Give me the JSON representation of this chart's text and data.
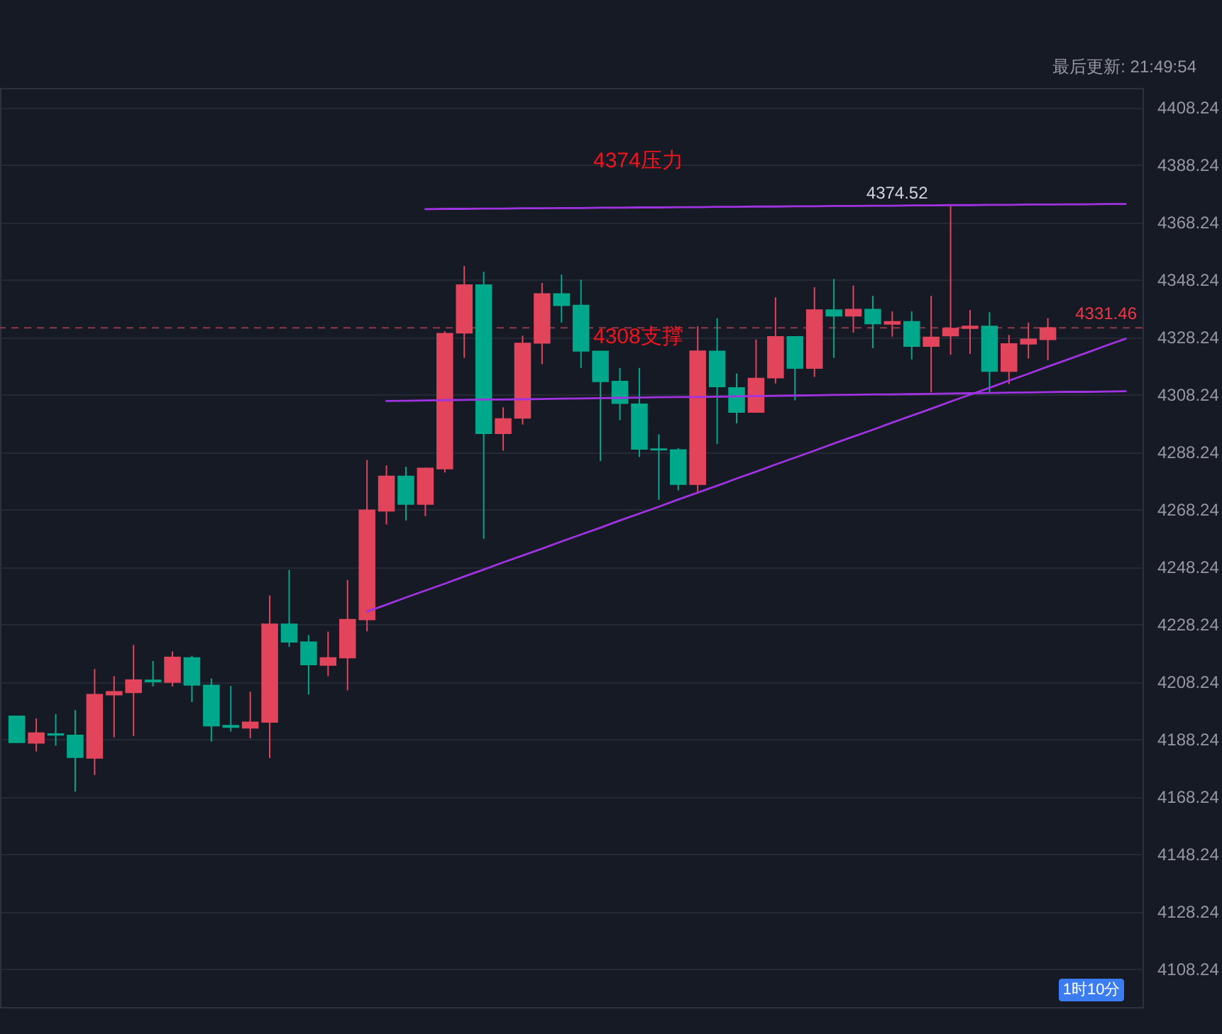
{
  "chart_data": {
    "type": "candlestick",
    "categories": [
      null,
      null,
      null,
      null,
      null,
      null,
      null,
      null,
      null,
      null,
      null,
      null,
      null,
      null,
      null,
      null,
      null,
      null,
      null,
      null,
      null,
      null,
      null,
      null,
      null,
      null,
      null,
      null,
      null,
      null,
      null,
      null,
      null,
      null,
      null,
      null,
      null,
      null,
      null,
      null,
      null,
      null,
      null,
      null,
      null,
      null,
      null,
      null,
      null,
      null,
      null,
      null,
      null,
      null,
      null,
      null,
      null,
      null
    ],
    "ohlc": [
      [
        4196.3,
        4196.3,
        4187.1,
        4187.1
      ],
      [
        4186.9,
        4195.5,
        4184.0,
        4190.4
      ],
      [
        4190.1,
        4197.0,
        4186.0,
        4189.7
      ],
      [
        4189.6,
        4198.4,
        4170.0,
        4181.9
      ],
      [
        4181.7,
        4212.7,
        4175.8,
        4203.8
      ],
      [
        4203.7,
        4210.2,
        4188.9,
        4204.8
      ],
      [
        4204.5,
        4221.1,
        4189.4,
        4208.9
      ],
      [
        4208.8,
        4215.5,
        4206.6,
        4208.3
      ],
      [
        4208.1,
        4218.8,
        4206.6,
        4216.8
      ],
      [
        4216.6,
        4217.3,
        4201.2,
        4207.1
      ],
      [
        4207.0,
        4209.4,
        4187.4,
        4192.9
      ],
      [
        4193.0,
        4206.8,
        4190.9,
        4192.4
      ],
      [
        4192.2,
        4204.8,
        4188.6,
        4194.2
      ],
      [
        4194.2,
        4238.3,
        4181.7,
        4228.3
      ],
      [
        4228.3,
        4247.2,
        4220.4,
        4222.1
      ],
      [
        4222.1,
        4224.5,
        4203.8,
        4214.2
      ],
      [
        4214.0,
        4225.7,
        4210.2,
        4216.6
      ],
      [
        4216.6,
        4243.7,
        4205.3,
        4229.9
      ],
      [
        4229.9,
        4285.5,
        4225.8,
        4268.0
      ],
      [
        4267.7,
        4283.6,
        4263.0,
        4279.8
      ],
      [
        4279.8,
        4283.1,
        4264.4,
        4270.1
      ],
      [
        4270.1,
        4282.8,
        4265.9,
        4282.6
      ],
      [
        4282.4,
        4330.3,
        4281.1,
        4329.5
      ],
      [
        4329.7,
        4353.0,
        4321.0,
        4346.4
      ],
      [
        4346.4,
        4351.0,
        4258.0,
        4294.7
      ],
      [
        4294.7,
        4303.8,
        4288.7,
        4299.8
      ],
      [
        4300.1,
        4328.7,
        4297.8,
        4326.1
      ],
      [
        4326.2,
        4347.1,
        4318.8,
        4343.3
      ],
      [
        4343.3,
        4350.0,
        4333.3,
        4339.3
      ],
      [
        4339.3,
        4348.2,
        4317.5,
        4323.4
      ],
      [
        4323.3,
        4323.3,
        4285.1,
        4312.8
      ],
      [
        4312.8,
        4317.5,
        4299.3,
        4305.2
      ],
      [
        4304.9,
        4317.5,
        4286.5,
        4289.3
      ],
      [
        4289.3,
        4294.4,
        4271.6,
        4289.0
      ],
      [
        4289.0,
        4289.6,
        4274.9,
        4277.0
      ],
      [
        4277.0,
        4332.0,
        4273.7,
        4323.4
      ],
      [
        4323.3,
        4334.8,
        4291.0,
        4311.0
      ],
      [
        4310.6,
        4315.6,
        4298.2,
        4302.1
      ],
      [
        4302.1,
        4327.4,
        4302.1,
        4313.9
      ],
      [
        4314.1,
        4342.1,
        4312.1,
        4328.4
      ],
      [
        4328.4,
        4328.4,
        4306.2,
        4317.4
      ],
      [
        4317.4,
        4345.6,
        4314.4,
        4337.7
      ],
      [
        4337.7,
        4348.5,
        4321.0,
        4335.6
      ],
      [
        4335.6,
        4346.2,
        4329.8,
        4337.9
      ],
      [
        4337.9,
        4342.6,
        4324.4,
        4332.9
      ],
      [
        4332.8,
        4337.2,
        4328.4,
        4333.6
      ],
      [
        4333.6,
        4337.2,
        4320.5,
        4325.1
      ],
      [
        4325.1,
        4342.6,
        4309.0,
        4328.2
      ],
      [
        4328.7,
        4374.52,
        4322.1,
        4331.3
      ],
      [
        4331.3,
        4337.7,
        4322.4,
        4332.0
      ],
      [
        4332.0,
        4336.9,
        4309.0,
        4316.4
      ],
      [
        4316.4,
        4329.0,
        4311.9,
        4325.9
      ],
      [
        4325.9,
        4333.3,
        4320.8,
        4327.5
      ],
      [
        4327.4,
        4334.8,
        4320.2,
        4331.46
      ],
      null,
      null,
      null,
      null
    ],
    "colors": [
      "#00a88b",
      "#e2445c",
      "#00a88b",
      "#00a88b",
      "#e2445c",
      "#e2445c",
      "#e2445c",
      "#00a88b",
      "#e2445c",
      "#00a88b",
      "#00a88b",
      "#00a88b",
      "#e2445c",
      "#e2445c",
      "#00a88b",
      "#00a88b",
      "#e2445c",
      "#e2445c",
      "#e2445c",
      "#e2445c",
      "#00a88b",
      "#e2445c",
      "#e2445c",
      "#e2445c",
      "#00a88b",
      "#e2445c",
      "#e2445c",
      "#e2445c",
      "#00a88b",
      "#00a88b",
      "#00a88b",
      "#00a88b",
      "#00a88b",
      "#00a88b",
      "#00a88b",
      "#e2445c",
      "#00a88b",
      "#00a88b",
      "#e2445c",
      "#e2445c",
      "#00a88b",
      "#e2445c",
      "#00a88b",
      "#e2445c",
      "#00a88b",
      "#e2445c",
      "#00a88b",
      "#e2445c",
      "#e2445c",
      "#e2445c",
      "#00a88b",
      "#e2445c",
      "#e2445c",
      "#e2445c",
      null,
      null,
      null,
      null
    ],
    "series": [
      {
        "type": "line",
        "color": "#a033e0",
        "values": [
          null,
          null,
          null,
          null,
          null,
          null,
          null,
          null,
          null,
          null,
          null,
          null,
          null,
          null,
          null,
          null,
          null,
          null,
          null,
          null,
          null,
          4372.8,
          4372.9,
          4372.9,
          4373.0,
          4373.0,
          4373.1,
          4373.1,
          4373.2,
          4373.2,
          4373.3,
          4373.3,
          4373.4,
          4373.4,
          4373.5,
          4373.5,
          4373.6,
          4373.6,
          4373.7,
          4373.7,
          4373.8,
          4373.8,
          4373.9,
          4373.9,
          4374.0,
          4374.0,
          4374.1,
          4374.1,
          4374.2,
          4374.2,
          4374.3,
          4374.3,
          4374.4,
          4374.4,
          4374.5,
          4374.5,
          4374.6,
          4374.6
        ]
      },
      {
        "type": "line",
        "color": "#a033e0",
        "values": [
          null,
          null,
          null,
          null,
          null,
          null,
          null,
          null,
          null,
          null,
          null,
          null,
          null,
          null,
          null,
          null,
          null,
          null,
          null,
          4306.0,
          4306.1,
          4306.2,
          4306.3,
          4306.4,
          4306.5,
          4306.5,
          4306.6,
          4306.7,
          4306.8,
          4306.9,
          4307.0,
          4307.1,
          4307.2,
          4307.3,
          4307.4,
          4307.4,
          4307.5,
          4307.6,
          4307.7,
          4307.8,
          4307.9,
          4308.0,
          4308.1,
          4308.2,
          4308.3,
          4308.3,
          4308.4,
          4308.5,
          4308.6,
          4308.7,
          4308.8,
          4308.9,
          4309.0,
          4309.1,
          4309.2,
          4309.2,
          4309.3,
          4309.4
        ]
      },
      {
        "type": "line",
        "color": "#a033e0",
        "values": [
          null,
          null,
          null,
          null,
          null,
          null,
          null,
          null,
          null,
          null,
          null,
          null,
          null,
          null,
          null,
          null,
          null,
          null,
          4232.7,
          4235.1,
          4237.6,
          4240.0,
          4242.4,
          4244.9,
          4247.3,
          4249.8,
          4252.2,
          4254.6,
          4257.1,
          4259.5,
          4261.9,
          4264.4,
          4266.8,
          4269.2,
          4271.7,
          4274.1,
          4276.5,
          4279.0,
          4281.4,
          4283.9,
          4286.3,
          4288.7,
          4291.2,
          4293.6,
          4296.0,
          4298.5,
          4300.9,
          4303.3,
          4305.8,
          4308.2,
          4310.6,
          4313.1,
          4315.5,
          4318.0,
          4320.4,
          4322.8,
          4325.3,
          4327.7
        ]
      }
    ],
    "ref_lines": [
      {
        "axis": "y",
        "value": 4331.46,
        "label": "4331.46",
        "color": "#8c3a4a",
        "line_style": "dashed"
      }
    ],
    "ylim": [
      4095,
      4415
    ],
    "yticks": [
      4108.24,
      4128.24,
      4148.24,
      4168.24,
      4188.24,
      4208.24,
      4228.24,
      4248.24,
      4268.24,
      4288.24,
      4308.24,
      4328.24,
      4348.24,
      4368.24,
      4388.24,
      4408.24
    ],
    "tick_labels": "y",
    "grid": "y",
    "annotations": [
      "最后更新: 21:49:54",
      "4374压力",
      "4308支撑",
      {
        "text": "4374.52",
        "y": 4374.52
      },
      "1时10分"
    ]
  }
}
